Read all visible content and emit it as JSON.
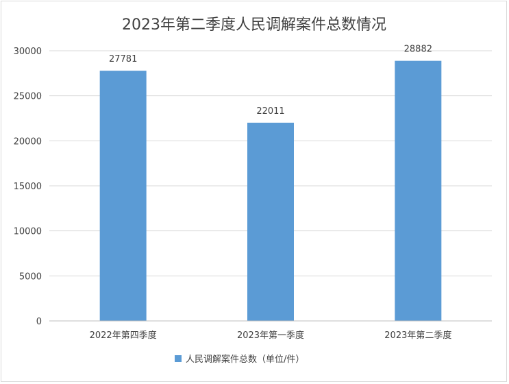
{
  "chart_data": {
    "type": "bar",
    "title": "2023年第二季度人民调解案件总数情况",
    "categories": [
      "2022年第四季度",
      "2023年第一季度",
      "2023年第二季度"
    ],
    "series": [
      {
        "name": "人民调解案件总数（单位/件）",
        "values": [
          27781,
          22011,
          28882
        ],
        "color": "#5b9bd5"
      }
    ],
    "ylim": [
      0,
      30000
    ],
    "yticks": [
      0,
      5000,
      10000,
      15000,
      20000,
      25000,
      30000
    ],
    "grid": true,
    "legend": "bottom",
    "data_labels": true
  }
}
